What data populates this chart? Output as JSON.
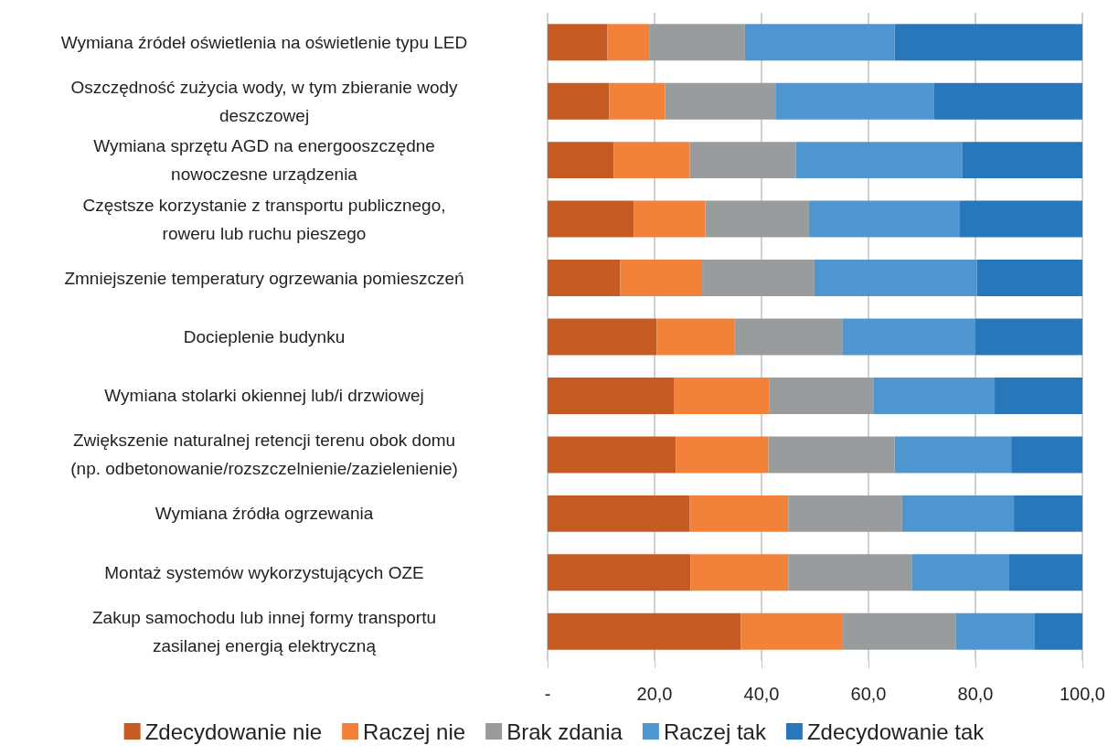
{
  "chart_data": {
    "type": "bar",
    "orientation": "horizontal",
    "stacked": true,
    "categories": [
      "Wymiana źródeł oświetlenia na oświetlenie typu LED",
      "Oszczędność zużycia wody, w tym zbieranie wody\ndeszczowej",
      "Wymiana sprzętu AGD na energooszczędne\nnowoczesne urządzenia",
      "Częstsze korzystanie z transportu publicznego,\nroweru lub ruchu pieszego",
      "Zmniejszenie temperatury ogrzewania pomieszczeń",
      "Docieplenie budynku",
      "Wymiana stolarki okiennej lub/i drzwiowej",
      "Zwiększenie naturalnej retencji terenu obok domu\n(np. odbetonowanie/rozszczelnienie/zazielenienie)",
      "Wymiana źródła ogrzewania",
      "Montaż systemów wykorzystujących OZE",
      "Zakup samochodu lub innej formy transportu\nzasilanej energią elektryczną"
    ],
    "series": [
      {
        "name": "Zdecydowanie nie",
        "color": "#c55a22",
        "values": [
          11.2,
          11.5,
          12.4,
          16.1,
          13.6,
          20.4,
          23.6,
          24.0,
          26.6,
          26.7,
          36.1
        ]
      },
      {
        "name": "Raczej nie",
        "color": "#f2813a",
        "values": [
          7.8,
          10.5,
          14.2,
          13.4,
          15.3,
          14.5,
          17.8,
          17.3,
          18.4,
          18.3,
          19.1
        ]
      },
      {
        "name": "Brak zdania",
        "color": "#999c9d",
        "values": [
          17.9,
          20.6,
          19.8,
          19.4,
          21.0,
          20.3,
          19.5,
          23.6,
          21.3,
          23.1,
          21.1
        ]
      },
      {
        "name": "Raczej tak",
        "color": "#4f96d1",
        "values": [
          28.0,
          29.7,
          31.2,
          28.2,
          30.4,
          24.8,
          22.7,
          21.8,
          20.9,
          18.1,
          14.7
        ]
      },
      {
        "name": "Zdecydowanie tak",
        "color": "#2777ba",
        "values": [
          35.1,
          27.7,
          22.4,
          22.9,
          19.7,
          20.0,
          16.4,
          13.3,
          12.8,
          13.8,
          9.0
        ]
      }
    ],
    "xlim": [
      0,
      100
    ],
    "xticks": [
      {
        "value": 0,
        "label": "-"
      },
      {
        "value": 20,
        "label": "20,0"
      },
      {
        "value": 40,
        "label": "40,0"
      },
      {
        "value": 60,
        "label": "60,0"
      },
      {
        "value": 80,
        "label": "80,0"
      },
      {
        "value": 100,
        "label": "100,0"
      }
    ],
    "grid": "x",
    "legend": "bottom"
  }
}
